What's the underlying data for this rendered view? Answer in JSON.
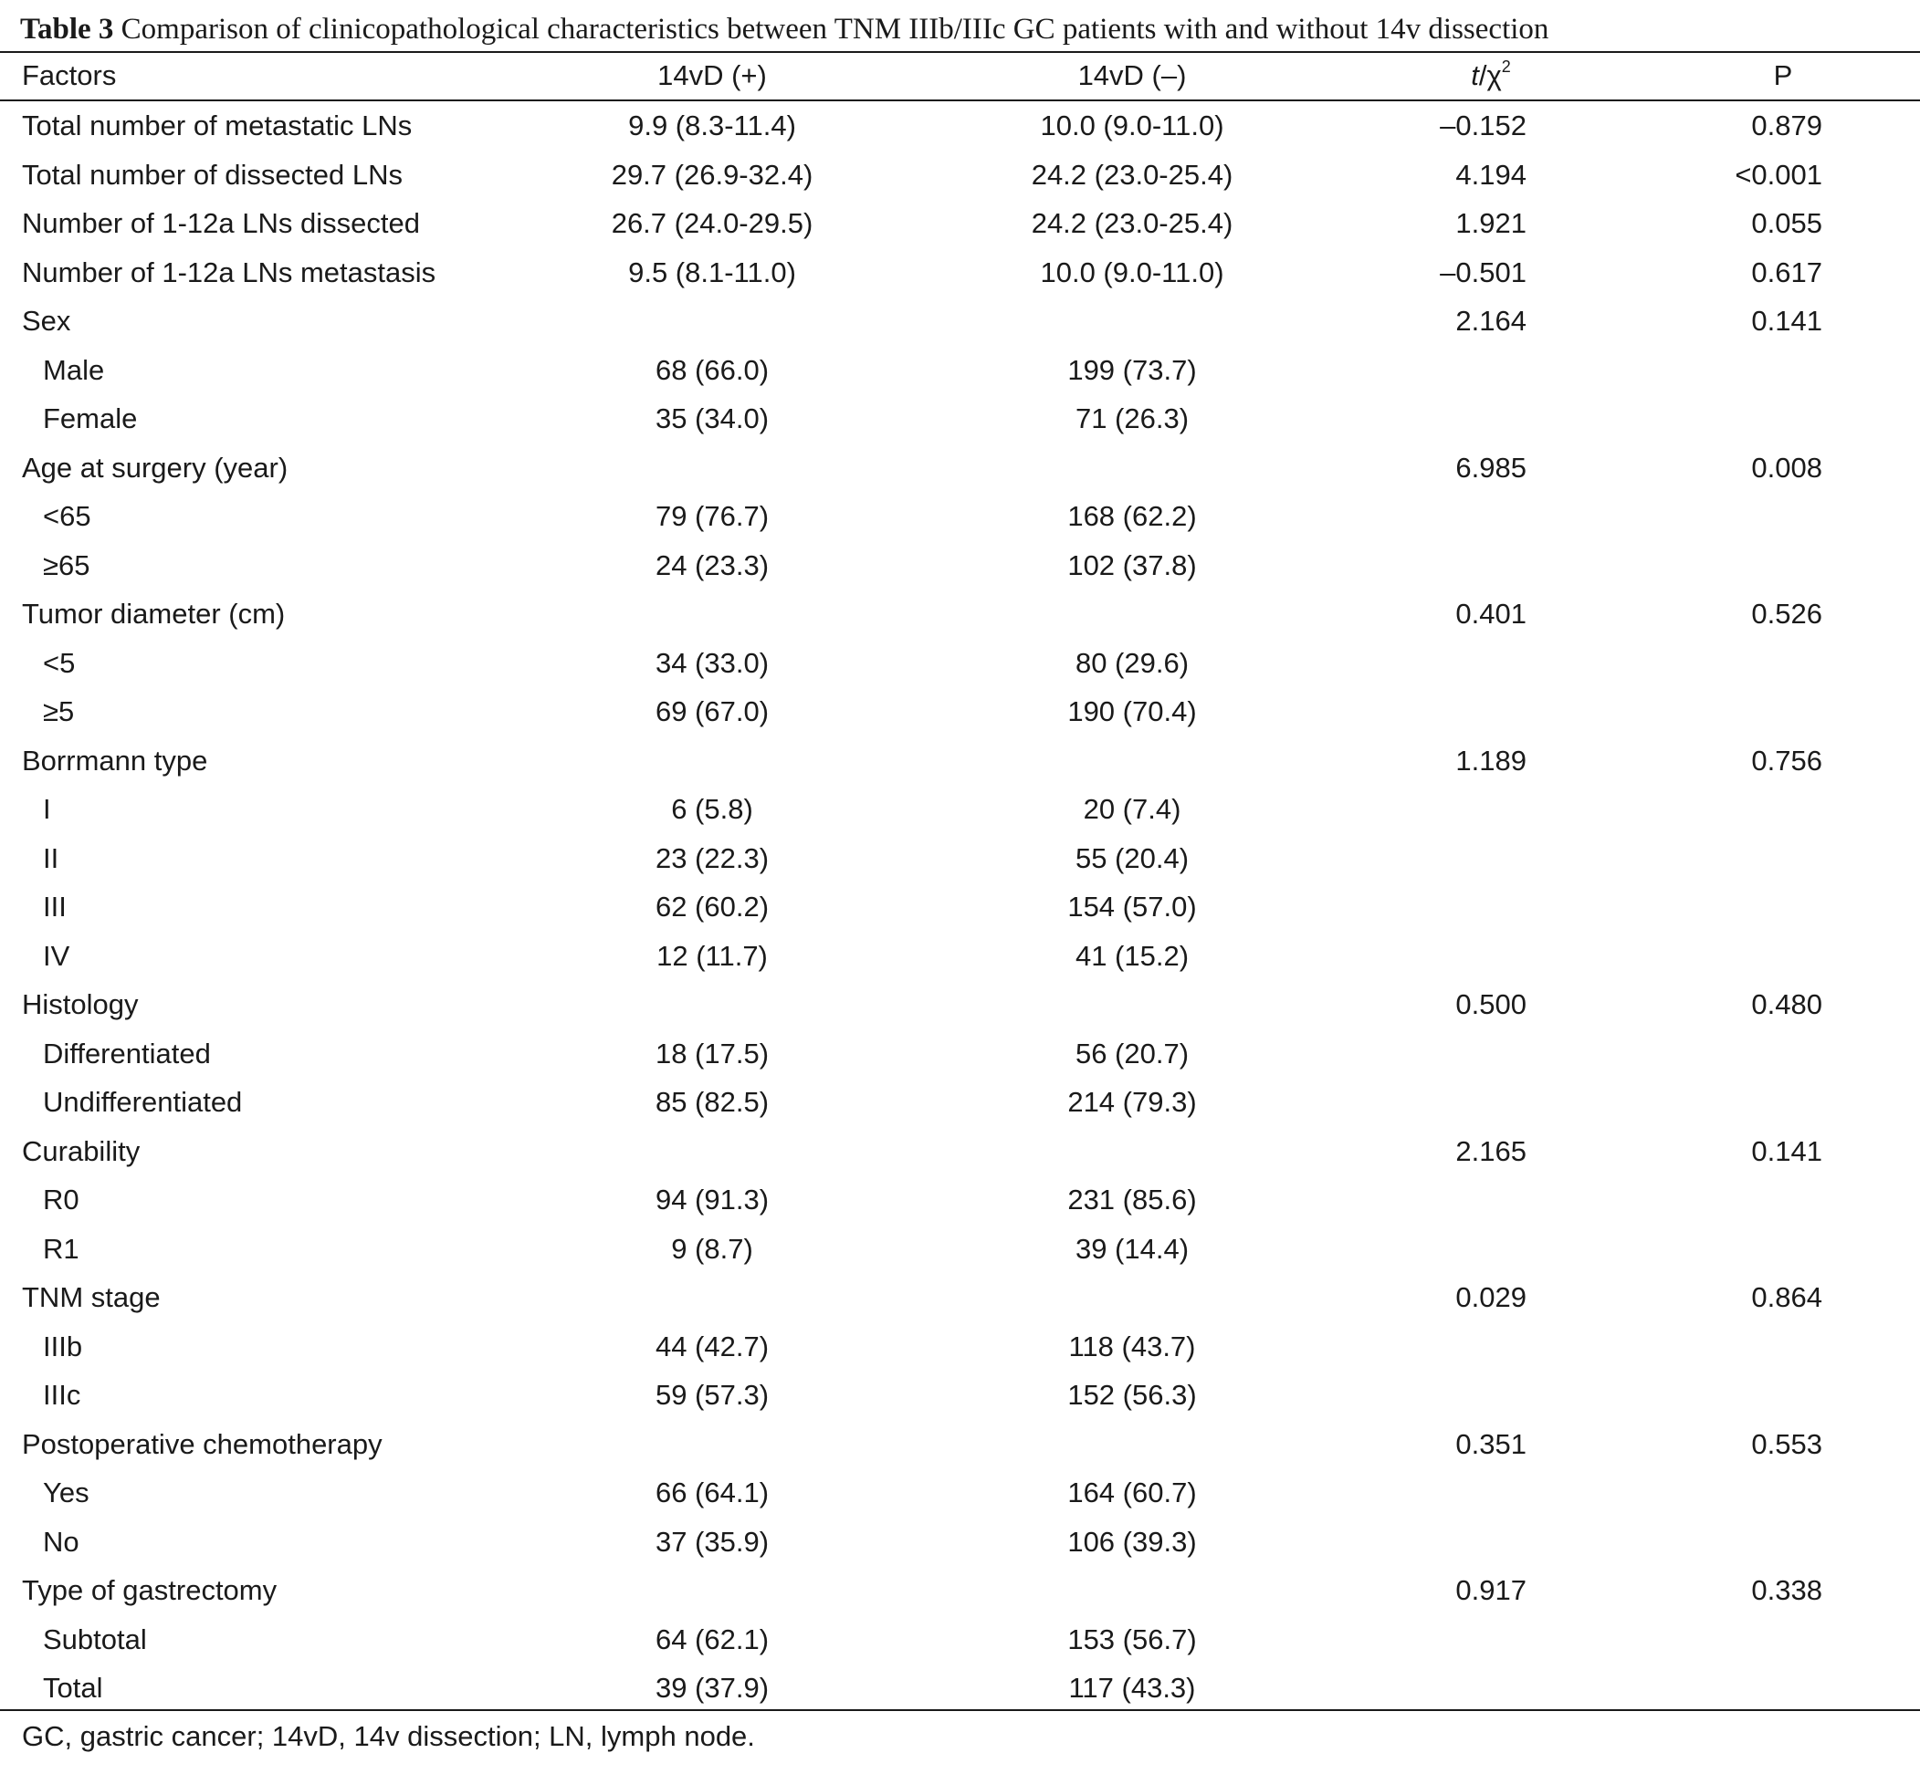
{
  "caption": {
    "number": "Table 3",
    "text": " Comparison of clinicopathological characteristics between TNM IIIb/IIIc GC patients with and without 14v dissection"
  },
  "header": {
    "factors": "Factors",
    "pos": "14vD (+)",
    "neg": "14vD (–)",
    "stat_italic": "t",
    "stat_mid": "/χ",
    "stat_sup": "2",
    "p": "P"
  },
  "rows": [
    {
      "label": "Total number of metastatic LNs",
      "pos": "9.9 (8.3-11.4)",
      "neg": "10.0 (9.0-11.0)",
      "stat": "–0.152",
      "p": "0.879"
    },
    {
      "label": "Total number of dissected LNs",
      "pos": "29.7 (26.9-32.4)",
      "neg": "24.2 (23.0-25.4)",
      "stat": "4.194",
      "p": "<0.001"
    },
    {
      "label": "Number of 1-12a LNs dissected",
      "pos": "26.7 (24.0-29.5)",
      "neg": "24.2 (23.0-25.4)",
      "stat": "1.921",
      "p": "0.055"
    },
    {
      "label": "Number of 1-12a LNs metastasis",
      "pos": "9.5 (8.1-11.0)",
      "neg": "10.0 (9.0-11.0)",
      "stat": "–0.501",
      "p": "0.617"
    },
    {
      "label": "Sex",
      "pos": "",
      "neg": "",
      "stat": "2.164",
      "p": "0.141"
    },
    {
      "label": "Male",
      "pos": "68 (66.0)",
      "neg": "199 (73.7)",
      "stat": "",
      "p": ""
    },
    {
      "label": "Female",
      "pos": "35 (34.0)",
      "neg": "71 (26.3)",
      "stat": "",
      "p": ""
    },
    {
      "label": "Age at surgery (year)",
      "pos": "",
      "neg": "",
      "stat": "6.985",
      "p": "0.008"
    },
    {
      "label": "<65",
      "pos": "79 (76.7)",
      "neg": "168 (62.2)",
      "stat": "",
      "p": ""
    },
    {
      "label": "≥65",
      "pos": "24 (23.3)",
      "neg": "102 (37.8)",
      "stat": "",
      "p": ""
    },
    {
      "label": "Tumor diameter (cm)",
      "pos": "",
      "neg": "",
      "stat": "0.401",
      "p": "0.526"
    },
    {
      "label": "<5",
      "pos": "34 (33.0)",
      "neg": "80 (29.6)",
      "stat": "",
      "p": ""
    },
    {
      "label": "≥5",
      "pos": "69 (67.0)",
      "neg": "190 (70.4)",
      "stat": "",
      "p": ""
    },
    {
      "label": "Borrmann type",
      "pos": "",
      "neg": "",
      "stat": "1.189",
      "p": "0.756"
    },
    {
      "label": "I",
      "pos": "6 (5.8)",
      "neg": "20 (7.4)",
      "stat": "",
      "p": ""
    },
    {
      "label": "II",
      "pos": "23 (22.3)",
      "neg": "55 (20.4)",
      "stat": "",
      "p": ""
    },
    {
      "label": "III",
      "pos": "62 (60.2)",
      "neg": "154 (57.0)",
      "stat": "",
      "p": ""
    },
    {
      "label": "IV",
      "pos": "12 (11.7)",
      "neg": "41 (15.2)",
      "stat": "",
      "p": ""
    },
    {
      "label": "Histology",
      "pos": "",
      "neg": "",
      "stat": "0.500",
      "p": "0.480"
    },
    {
      "label": "Differentiated",
      "pos": "18 (17.5)",
      "neg": "56 (20.7)",
      "stat": "",
      "p": ""
    },
    {
      "label": "Undifferentiated",
      "pos": "85 (82.5)",
      "neg": "214 (79.3)",
      "stat": "",
      "p": ""
    },
    {
      "label": "Curability",
      "pos": "",
      "neg": "",
      "stat": "2.165",
      "p": "0.141"
    },
    {
      "label": "R0",
      "pos": "94 (91.3)",
      "neg": "231 (85.6)",
      "stat": "",
      "p": ""
    },
    {
      "label": "R1",
      "pos": "9 (8.7)",
      "neg": "39 (14.4)",
      "stat": "",
      "p": ""
    },
    {
      "label": "TNM stage",
      "pos": "",
      "neg": "",
      "stat": "0.029",
      "p": "0.864"
    },
    {
      "label": "IIIb",
      "pos": "44 (42.7)",
      "neg": "118 (43.7)",
      "stat": "",
      "p": ""
    },
    {
      "label": "IIIc",
      "pos": "59 (57.3)",
      "neg": "152 (56.3)",
      "stat": "",
      "p": ""
    },
    {
      "label": "Postoperative chemotherapy",
      "pos": "",
      "neg": "",
      "stat": "0.351",
      "p": "0.553"
    },
    {
      "label": "Yes",
      "pos": "66 (64.1)",
      "neg": "164 (60.7)",
      "stat": "",
      "p": ""
    },
    {
      "label": "No",
      "pos": "37 (35.9)",
      "neg": "106 (39.3)",
      "stat": "",
      "p": ""
    },
    {
      "label": "Type of gastrectomy",
      "pos": "",
      "neg": "",
      "stat": "0.917",
      "p": "0.338"
    },
    {
      "label": "Subtotal",
      "pos": "64 (62.1)",
      "neg": "153 (56.7)",
      "stat": "",
      "p": ""
    },
    {
      "label": "Total",
      "pos": "39 (37.9)",
      "neg": "117 (43.3)",
      "stat": "",
      "p": ""
    }
  ],
  "footnote": "GC, gastric cancer; 14vD, 14v dissection; LN, lymph node."
}
